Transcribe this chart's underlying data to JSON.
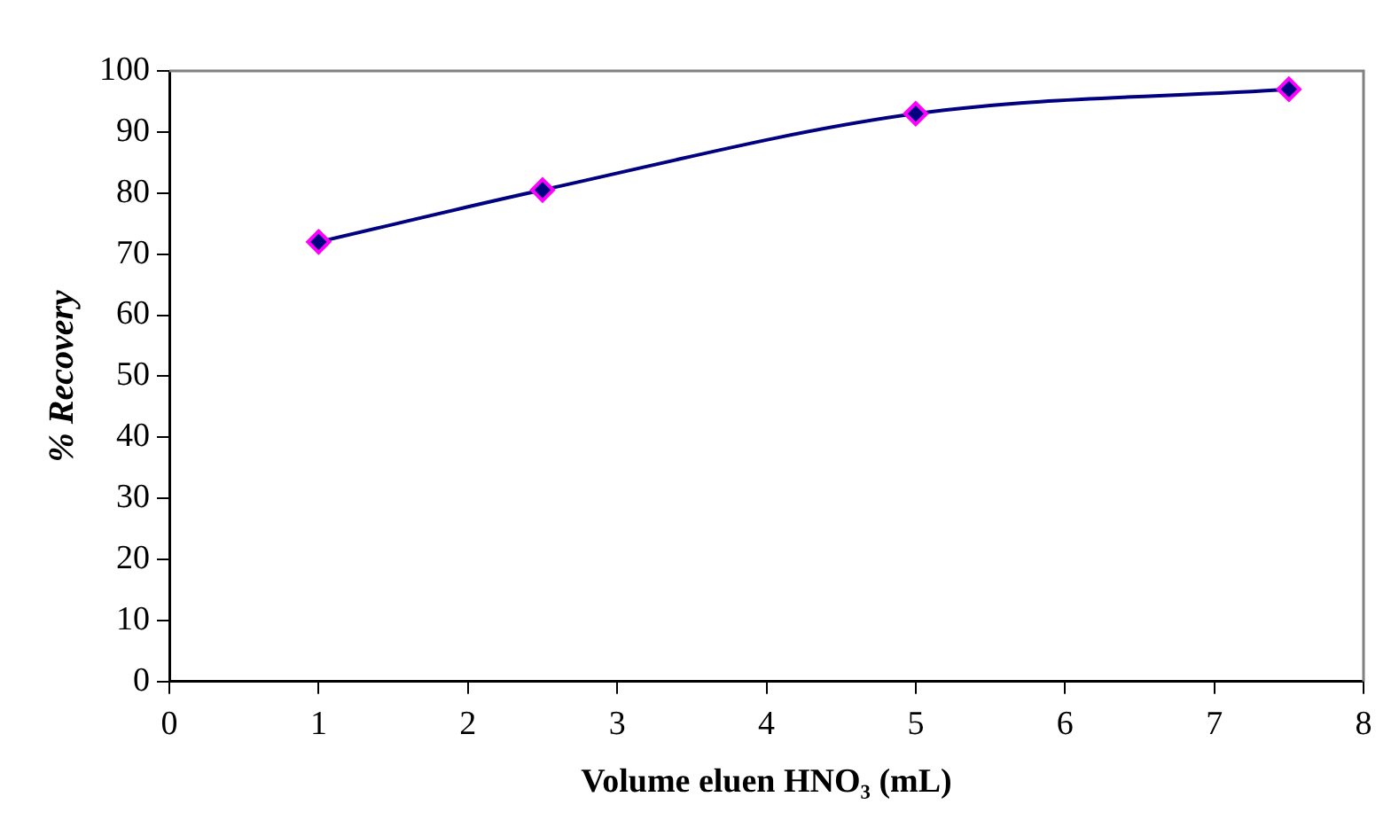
{
  "chart_data": {
    "type": "line",
    "xlabel": "Volume eluen HNO₃ (mL)",
    "ylabel": "% Recovery",
    "x": [
      1,
      2.5,
      5,
      7.5
    ],
    "series": [
      {
        "color": "#000080",
        "values": [
          72,
          80.5,
          93,
          97
        ]
      }
    ],
    "xlim": [
      0,
      8
    ],
    "xticks": [
      0,
      1,
      2,
      3,
      4,
      5,
      6,
      7,
      8
    ],
    "ylim": [
      0,
      100
    ],
    "yticks": [
      0,
      10,
      20,
      30,
      40,
      50,
      60,
      70,
      80,
      90,
      100
    ],
    "grid": false,
    "legend": false,
    "marker": "diamond",
    "line_style": "solid"
  }
}
